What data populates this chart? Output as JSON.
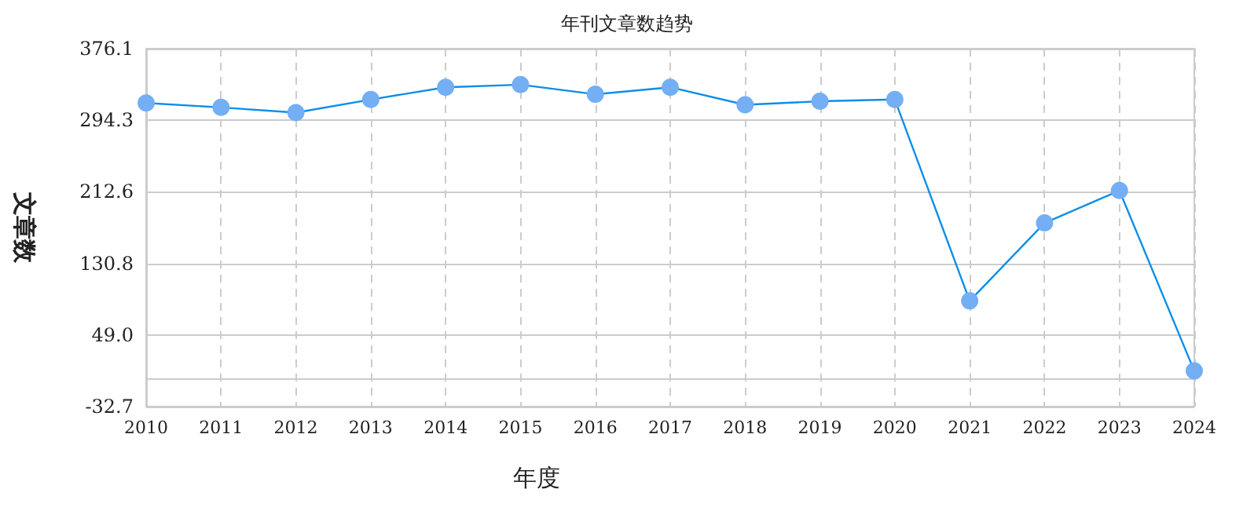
{
  "chart_data": {
    "type": "line",
    "title": "年刊文章数趋势",
    "xlabel": "年度",
    "ylabel": "文章数",
    "categories": [
      "2010",
      "2011",
      "2012",
      "2013",
      "2014",
      "2015",
      "2016",
      "2017",
      "2018",
      "2019",
      "2020",
      "2021",
      "2022",
      "2023",
      "2024"
    ],
    "series": [
      {
        "color": "#0d8ee8",
        "values": [
          314,
          309,
          303,
          318,
          332,
          335,
          324,
          332,
          312,
          316,
          318,
          88,
          177,
          214,
          8
        ]
      }
    ],
    "ylim": [
      -32.7,
      376.1
    ],
    "yticks": [
      -32.7,
      {
        "value": 49,
        "label": "49.0"
      },
      130.8,
      212.6,
      294.3,
      376.1
    ],
    "grid": true,
    "marker": "circle",
    "line_style": "solid"
  }
}
